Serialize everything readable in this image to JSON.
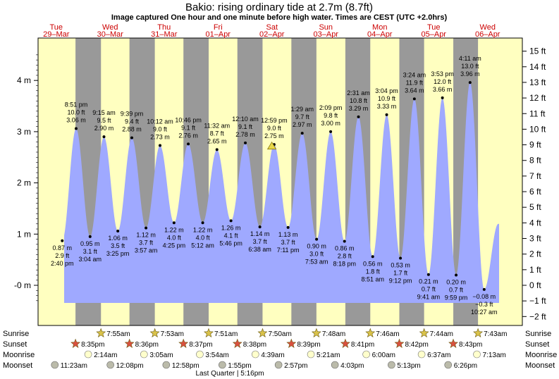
{
  "title": "Bakio: rising  ordinary tide at 2.7m (8.7ft)",
  "subtitle": "Image captured One hour and one minute before high water. Times are CEST (UTC +2.0hrs)",
  "chart_data": {
    "type": "area",
    "ylim_m": [
      -0.35,
      4.55
    ],
    "yticks_m": [
      "-0 m",
      "1 m",
      "2 m",
      "3 m",
      "4 m"
    ],
    "yticks_ft": [
      "−2 ft",
      "−1 ft",
      "0 ft",
      "1 ft",
      "2 ft",
      "3 ft",
      "4 ft",
      "5 ft",
      "6 ft",
      "7 ft",
      "8 ft",
      "9 ft",
      "10 ft",
      "11 ft",
      "12 ft",
      "13 ft",
      "14 ft",
      "15 ft"
    ],
    "days": [
      {
        "name": "Tue",
        "date": "29–Mar"
      },
      {
        "name": "Wed",
        "date": "30–Mar"
      },
      {
        "name": "Thu",
        "date": "31–Mar"
      },
      {
        "name": "Fri",
        "date": "01–Apr"
      },
      {
        "name": "Sat",
        "date": "02–Apr"
      },
      {
        "name": "Sun",
        "date": "03–Apr"
      },
      {
        "name": "Mon",
        "date": "04–Apr"
      },
      {
        "name": "Tue",
        "date": "05–Apr"
      },
      {
        "name": "Wed",
        "date": "06–Apr"
      }
    ],
    "tides": [
      {
        "time": "2:40 pm",
        "m": "0.87 m",
        "ft": "2.9 ft",
        "v": 0.87,
        "type": "low",
        "day": 0,
        "h": 14.67
      },
      {
        "time": "8:51 pm",
        "m": "3.06 m",
        "ft": "10.0 ft",
        "v": 3.06,
        "type": "high",
        "day": 0,
        "h": 20.85
      },
      {
        "time": "3:04 am",
        "m": "0.95 m",
        "ft": "3.1 ft",
        "v": 0.95,
        "type": "low",
        "day": 1,
        "h": 3.07
      },
      {
        "time": "9:15 am",
        "m": "2.90 m",
        "ft": "9.5 ft",
        "v": 2.9,
        "type": "high",
        "day": 1,
        "h": 9.25
      },
      {
        "time": "3:25 pm",
        "m": "1.06 m",
        "ft": "3.5 ft",
        "v": 1.06,
        "type": "low",
        "day": 1,
        "h": 15.42
      },
      {
        "time": "9:39 pm",
        "m": "2.88 m",
        "ft": "9.4 ft",
        "v": 2.88,
        "type": "high",
        "day": 1,
        "h": 21.65
      },
      {
        "time": "3:57 am",
        "m": "1.12 m",
        "ft": "3.7 ft",
        "v": 1.12,
        "type": "low",
        "day": 2,
        "h": 3.95
      },
      {
        "time": "10:12 am",
        "m": "2.73 m",
        "ft": "9.0 ft",
        "v": 2.73,
        "type": "high",
        "day": 2,
        "h": 10.2
      },
      {
        "time": "4:25 pm",
        "m": "1.22 m",
        "ft": "4.0 ft",
        "v": 1.22,
        "type": "low",
        "day": 2,
        "h": 16.42
      },
      {
        "time": "10:46 pm",
        "m": "2.76 m",
        "ft": "9.1 ft",
        "v": 2.76,
        "type": "high",
        "day": 2,
        "h": 22.77
      },
      {
        "time": "5:12 am",
        "m": "1.22 m",
        "ft": "4.0 ft",
        "v": 1.22,
        "type": "low",
        "day": 3,
        "h": 5.2
      },
      {
        "time": "11:32 am",
        "m": "2.65 m",
        "ft": "8.7 ft",
        "v": 2.65,
        "type": "high",
        "day": 3,
        "h": 11.53
      },
      {
        "time": "5:46 pm",
        "m": "1.26 m",
        "ft": "4.1 ft",
        "v": 1.26,
        "type": "low",
        "day": 3,
        "h": 17.77
      },
      {
        "time": "12:10 am",
        "m": "2.78 m",
        "ft": "9.1 ft",
        "v": 2.78,
        "type": "high",
        "day": 4,
        "h": 0.17
      },
      {
        "time": "6:38 am",
        "m": "1.14 m",
        "ft": "3.7 ft",
        "v": 1.14,
        "type": "low",
        "day": 4,
        "h": 6.63
      },
      {
        "time": "12:59 pm",
        "m": "2.75 m",
        "ft": "9.0 ft",
        "v": 2.75,
        "type": "high",
        "day": 4,
        "h": 12.98
      },
      {
        "time": "7:11 pm",
        "m": "1.13 m",
        "ft": "3.7 ft",
        "v": 1.13,
        "type": "low",
        "day": 4,
        "h": 19.18
      },
      {
        "time": "1:29 am",
        "m": "2.97 m",
        "ft": "9.7 ft",
        "v": 2.97,
        "type": "high",
        "day": 5,
        "h": 1.48
      },
      {
        "time": "7:53 am",
        "m": "0.90 m",
        "ft": "3.0 ft",
        "v": 0.9,
        "type": "low",
        "day": 5,
        "h": 7.88
      },
      {
        "time": "2:09 pm",
        "m": "3.00 m",
        "ft": "9.8 ft",
        "v": 3.0,
        "type": "high",
        "day": 5,
        "h": 14.15
      },
      {
        "time": "8:18 pm",
        "m": "0.86 m",
        "ft": "2.8 ft",
        "v": 0.86,
        "type": "low",
        "day": 5,
        "h": 20.3
      },
      {
        "time": "2:31 am",
        "m": "3.29 m",
        "ft": "10.8 ft",
        "v": 3.29,
        "type": "high",
        "day": 6,
        "h": 2.52
      },
      {
        "time": "8:51 am",
        "m": "0.56 m",
        "ft": "1.8 ft",
        "v": 0.56,
        "type": "low",
        "day": 6,
        "h": 8.85
      },
      {
        "time": "3:04 pm",
        "m": "3.33 m",
        "ft": "10.9 ft",
        "v": 3.33,
        "type": "high",
        "day": 6,
        "h": 15.07
      },
      {
        "time": "9:12 pm",
        "m": "0.53 m",
        "ft": "1.7 ft",
        "v": 0.53,
        "type": "low",
        "day": 6,
        "h": 21.2
      },
      {
        "time": "3:24 am",
        "m": "3.64 m",
        "ft": "11.9 ft",
        "v": 3.64,
        "type": "high",
        "day": 7,
        "h": 3.4
      },
      {
        "time": "9:41 am",
        "m": "0.21 m",
        "ft": "0.7 ft",
        "v": 0.21,
        "type": "low",
        "day": 7,
        "h": 9.68
      },
      {
        "time": "3:53 pm",
        "m": "3.66 m",
        "ft": "12.0 ft",
        "v": 3.66,
        "type": "high",
        "day": 7,
        "h": 15.88
      },
      {
        "time": "9:59 pm",
        "m": "0.20 m",
        "ft": "0.7 ft",
        "v": 0.2,
        "type": "low",
        "day": 7,
        "h": 21.98
      },
      {
        "time": "4:11 am",
        "m": "3.96 m",
        "ft": "13.0 ft",
        "v": 3.96,
        "type": "high",
        "day": 8,
        "h": 4.18
      },
      {
        "time": "10:27 am",
        "m": "−0.08 m",
        "ft": "−0.3 ft",
        "v": -0.08,
        "type": "low",
        "day": 8,
        "h": 10.45
      }
    ],
    "current_marker": {
      "v": 2.7,
      "day": 4,
      "h": 11.95
    },
    "night_periods": [
      {
        "from_day": 0,
        "from_h": 20.58,
        "to_day": 1,
        "to_h": 7.92
      },
      {
        "from_day": 1,
        "from_h": 20.6,
        "to_day": 2,
        "to_h": 7.88
      },
      {
        "from_day": 2,
        "from_h": 20.62,
        "to_day": 3,
        "to_h": 7.85
      },
      {
        "from_day": 3,
        "from_h": 20.63,
        "to_day": 4,
        "to_h": 7.83
      },
      {
        "from_day": 4,
        "from_h": 20.65,
        "to_day": 5,
        "to_h": 7.8
      },
      {
        "from_day": 5,
        "from_h": 20.68,
        "to_day": 6,
        "to_h": 7.77
      },
      {
        "from_day": 6,
        "from_h": 20.7,
        "to_day": 7,
        "to_h": 7.73
      },
      {
        "from_day": 7,
        "from_h": 20.72,
        "to_day": 8,
        "to_h": 7.72
      }
    ]
  },
  "rows": {
    "labels": [
      "Sunrise",
      "Sunset",
      "Moonrise",
      "Moonset"
    ],
    "sunrise": [
      {
        "time": "7:55am",
        "day": 1,
        "h": 7.92
      },
      {
        "time": "7:53am",
        "day": 2,
        "h": 7.88
      },
      {
        "time": "7:51am",
        "day": 3,
        "h": 7.85
      },
      {
        "time": "7:50am",
        "day": 4,
        "h": 7.83
      },
      {
        "time": "7:48am",
        "day": 5,
        "h": 7.8
      },
      {
        "time": "7:46am",
        "day": 6,
        "h": 7.77
      },
      {
        "time": "7:44am",
        "day": 7,
        "h": 7.73
      },
      {
        "time": "7:43am",
        "day": 8,
        "h": 7.72
      }
    ],
    "sunset": [
      {
        "time": "8:35pm",
        "day": 0,
        "h": 20.58
      },
      {
        "time": "8:36pm",
        "day": 1,
        "h": 20.6
      },
      {
        "time": "8:37pm",
        "day": 2,
        "h": 20.62
      },
      {
        "time": "8:38pm",
        "day": 3,
        "h": 20.63
      },
      {
        "time": "8:39pm",
        "day": 4,
        "h": 20.65
      },
      {
        "time": "8:41pm",
        "day": 5,
        "h": 20.68
      },
      {
        "time": "8:42pm",
        "day": 6,
        "h": 20.7
      },
      {
        "time": "8:43pm",
        "day": 7,
        "h": 20.72
      }
    ],
    "moonrise": [
      {
        "time": "2:14am",
        "day": 1,
        "h": 2.23
      },
      {
        "time": "3:05am",
        "day": 2,
        "h": 3.08
      },
      {
        "time": "3:54am",
        "day": 3,
        "h": 3.9
      },
      {
        "time": "4:39am",
        "day": 4,
        "h": 4.65
      },
      {
        "time": "5:21am",
        "day": 5,
        "h": 5.35
      },
      {
        "time": "6:00am",
        "day": 6,
        "h": 6.0
      },
      {
        "time": "6:37am",
        "day": 7,
        "h": 6.62
      },
      {
        "time": "7:13am",
        "day": 8,
        "h": 7.22
      }
    ],
    "moonset": [
      {
        "time": "11:23am",
        "day": 0,
        "h": 11.38
      },
      {
        "time": "12:08pm",
        "day": 1,
        "h": 12.13
      },
      {
        "time": "12:58pm",
        "day": 2,
        "h": 12.97
      },
      {
        "time": "1:55pm",
        "day": 3,
        "h": 13.92
      },
      {
        "time": "2:57pm",
        "day": 4,
        "h": 14.95
      },
      {
        "time": "4:03pm",
        "day": 5,
        "h": 16.05
      },
      {
        "time": "5:13pm",
        "day": 6,
        "h": 17.22
      },
      {
        "time": "6:26pm",
        "day": 7,
        "h": 18.43
      }
    ],
    "moon_phase": "Last Quarter | 5:16pm"
  },
  "colors": {
    "day_bg": "#ffffc0",
    "night_bg": "#999999",
    "water": "#9fa9ff",
    "day_label": "#cc0000",
    "sunrise_star": "#d9c24a",
    "sunset_star": "#d9503f",
    "moonrise": "#ffffcc",
    "moonset": "#bbbbaa"
  }
}
